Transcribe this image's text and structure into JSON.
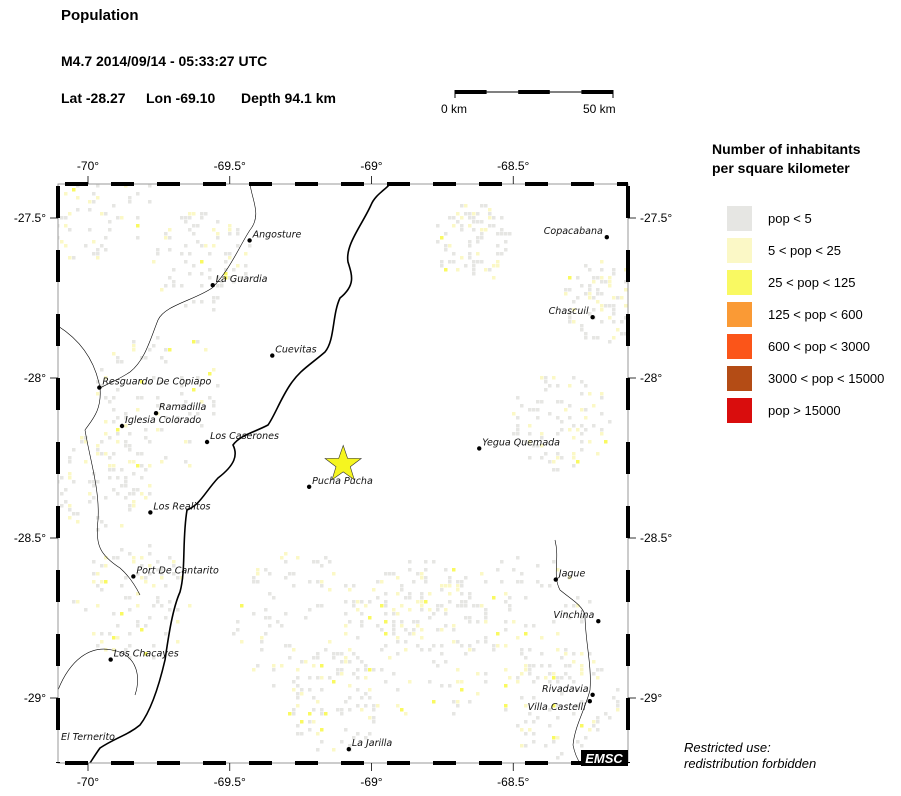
{
  "header": {
    "title": "Population",
    "event": "M4.7  2014/09/14 - 05:33:27 UTC",
    "lat": "Lat -28.27",
    "lon": "Lon -69.10",
    "depth": "Depth  94.1 km"
  },
  "scale_bar": {
    "start_label": "0 km",
    "end_label": "50 km"
  },
  "map": {
    "lon_range": [
      -70.1,
      -68.09
    ],
    "lat_range": [
      -29.2,
      -27.39
    ],
    "lon_ticks": [
      "-70°",
      "-69.5°",
      "-69°",
      "-68.5°"
    ],
    "lon_tick_values": [
      -70,
      -69.5,
      -69,
      -68.5
    ],
    "lat_ticks": [
      "-27.5°",
      "-28°",
      "-28.5°",
      "-29°"
    ],
    "lat_tick_values": [
      -27.5,
      -28,
      -28.5,
      -29
    ],
    "epicenter": {
      "lon": -69.1,
      "lat": -28.27,
      "color": "#f5f520"
    },
    "cities": [
      {
        "name": "Angosture",
        "lon": -69.43,
        "lat": -27.57
      },
      {
        "name": "La Guardia",
        "lon": -69.56,
        "lat": -27.71
      },
      {
        "name": "Cuevitas",
        "lon": -69.35,
        "lat": -27.93
      },
      {
        "name": "Resguardo De Copiapo",
        "lon": -69.96,
        "lat": -28.03
      },
      {
        "name": "Ramadilla",
        "lon": -69.76,
        "lat": -28.11
      },
      {
        "name": "Iglesia Colorado",
        "lon": -69.88,
        "lat": -28.15
      },
      {
        "name": "Los Caserones",
        "lon": -69.58,
        "lat": -28.2
      },
      {
        "name": "Pucha Pucha",
        "lon": -69.22,
        "lat": -28.34
      },
      {
        "name": "Yegua Quemada",
        "lon": -68.62,
        "lat": -28.22
      },
      {
        "name": "Los Realitos",
        "lon": -69.78,
        "lat": -28.42
      },
      {
        "name": "Port De Cantarito",
        "lon": -69.84,
        "lat": -28.62
      },
      {
        "name": "Jague",
        "lon": -68.35,
        "lat": -28.63
      },
      {
        "name": "Vinchina",
        "lon": -68.2,
        "lat": -28.76
      },
      {
        "name": "Los Chacayes",
        "lon": -69.92,
        "lat": -28.88
      },
      {
        "name": "Rivadavia",
        "lon": -68.22,
        "lat": -28.99
      },
      {
        "name": "Villa Castelli",
        "lon": -68.23,
        "lat": -29.01
      },
      {
        "name": "La Jarilla",
        "lon": -69.08,
        "lat": -29.16
      },
      {
        "name": "El Ternerito",
        "lon": -70.11,
        "lat": -29.14
      },
      {
        "name": "Copacabana",
        "lon": -68.17,
        "lat": -27.56
      },
      {
        "name": "Chascuil",
        "lon": -68.22,
        "lat": -27.81
      }
    ],
    "watermark": "EMSC"
  },
  "legend": {
    "title_line1": "Number of inhabitants",
    "title_line2": "per square kilometer",
    "items": [
      {
        "label": "pop < 5",
        "color": "#e6e6e3"
      },
      {
        "label": "5 < pop < 25",
        "color": "#fbf8c6"
      },
      {
        "label": "25 < pop < 125",
        "color": "#f9f962"
      },
      {
        "label": "125 < pop < 600",
        "color": "#fa9a35"
      },
      {
        "label": "600 < pop < 3000",
        "color": "#fb5519"
      },
      {
        "label": "3000 < pop < 15000",
        "color": "#b44c15"
      },
      {
        "label": "pop > 15000",
        "color": "#d90d0d"
      }
    ]
  },
  "note": {
    "line1": "Restricted use:",
    "line2": "redistribution forbidden"
  }
}
